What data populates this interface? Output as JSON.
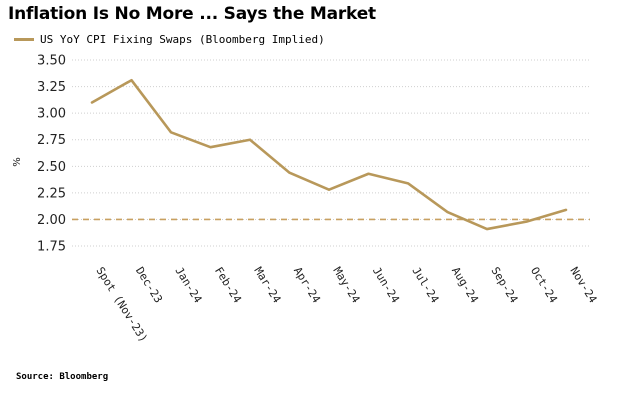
{
  "title": "Inflation Is No More ... Says the Market",
  "source": "Source: Bloomberg",
  "colors": {
    "series": "#B8985A",
    "reference": "#C8A060",
    "grid": "#cfcfcf"
  },
  "chart_data": {
    "type": "line",
    "title": "Inflation Is No More ... Says the Market",
    "xlabel": "",
    "ylabel": "%",
    "ylim": [
      1.6,
      3.5
    ],
    "yticks": [
      "3.50",
      "3.25",
      "3.00",
      "2.75",
      "2.50",
      "2.25",
      "2.00",
      "1.75"
    ],
    "yticks_values": [
      3.5,
      3.25,
      3.0,
      2.75,
      2.5,
      2.25,
      2.0,
      1.75
    ],
    "grid": "horizontal-dotted",
    "legend": "top-left",
    "categories": [
      "Spot (Nov-23)",
      "Dec-23",
      "Jan-24",
      "Feb-24",
      "Mar-24",
      "Apr-24",
      "May-24",
      "Jun-24",
      "Jul-24",
      "Aug-24",
      "Sep-24",
      "Oct-24",
      "Nov-24"
    ],
    "series": [
      {
        "name": "US YoY CPI Fixing Swaps (Bloomberg Implied)",
        "values": [
          3.1,
          3.31,
          2.82,
          2.68,
          2.75,
          2.44,
          2.28,
          2.43,
          2.34,
          2.07,
          1.91,
          1.98,
          2.09
        ]
      }
    ],
    "reference_line": {
      "y": 2.0,
      "style": "dashed"
    }
  }
}
